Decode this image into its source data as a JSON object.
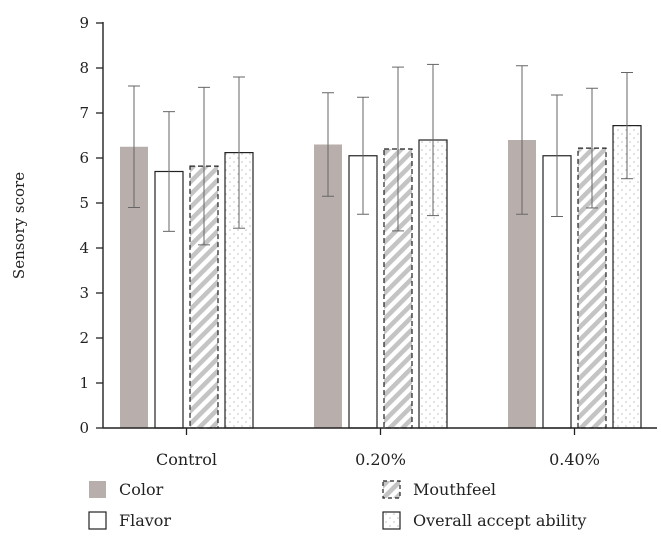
{
  "chart_data": {
    "type": "bar",
    "title": "",
    "xlabel": "",
    "ylabel": "Sensory score",
    "ylim": [
      0,
      9
    ],
    "yticks": [
      0,
      1,
      2,
      3,
      4,
      5,
      6,
      7,
      8,
      9
    ],
    "categories": [
      "Control",
      "0.20%",
      "0.40%"
    ],
    "grid": false,
    "legend_position": "bottom",
    "series": [
      {
        "name": "Color",
        "fill": "solid",
        "color": "#b8aeab",
        "values": [
          6.25,
          6.3,
          6.4
        ],
        "error": [
          1.35,
          1.15,
          1.65
        ]
      },
      {
        "name": "Flavor",
        "fill": "none",
        "color": "#ffffff",
        "values": [
          5.7,
          6.05,
          6.05
        ],
        "error": [
          1.33,
          1.3,
          1.35
        ]
      },
      {
        "name": "Mouthfeel",
        "fill": "diagonal-stripes",
        "color": "#c4c4c4",
        "values": [
          5.82,
          6.2,
          6.22
        ],
        "error": [
          1.75,
          1.82,
          1.33
        ]
      },
      {
        "name": "Overall accept ability",
        "fill": "dots",
        "color": "#bbbbbb",
        "values": [
          6.12,
          6.4,
          6.72
        ],
        "error": [
          1.68,
          1.68,
          1.18
        ]
      }
    ]
  }
}
